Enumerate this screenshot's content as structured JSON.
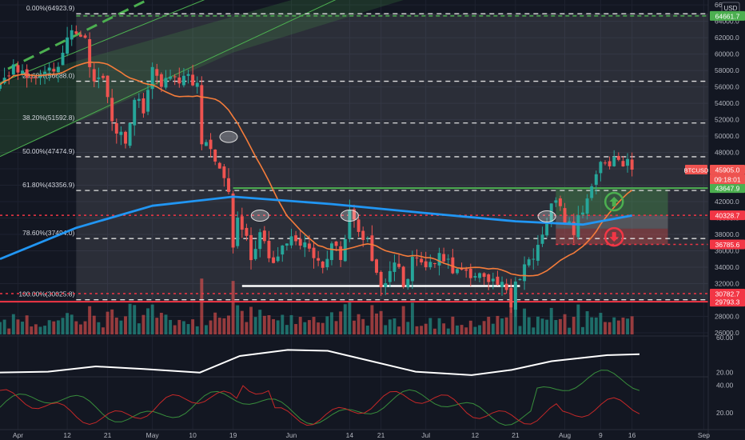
{
  "currency": "USD",
  "colors": {
    "background": "#131722",
    "up": "#26a69a",
    "down": "#ef5350",
    "ma_fast": "#f57c3a",
    "ma_slow": "#2196f3",
    "fib_green": "#4caf50",
    "support_red": "#f23645",
    "text": "#d1d4dc"
  },
  "chart_data": [
    {
      "type": "candlestick",
      "symbol": "BTCUSD",
      "last_price": "45905.0",
      "countdown": "09:18:01",
      "y_ticks": [
        26000,
        28000,
        30000,
        32000,
        34000,
        36000,
        38000,
        40000,
        42000,
        44000,
        46000,
        48000,
        50000,
        52000,
        54000,
        56000,
        58000,
        60000,
        62000,
        64000,
        66000
      ],
      "y_tick_labels": [
        "26000.0",
        "28000.0",
        "30000.0",
        "32000.0",
        "34000.0",
        "36000.0",
        "38000.0",
        "40000.0",
        "42000.0",
        "44000.0",
        "46000.0",
        "48000.0",
        "50000.0",
        "52000.0",
        "54000.0",
        "56000.0",
        "58000.0",
        "60000.0",
        "62000.0",
        "64000.0",
        "66000.0"
      ],
      "ylim": [
        25800,
        66600
      ],
      "x_labels": [
        {
          "label": "Apr",
          "date": "2021-04-01"
        },
        {
          "label": "12",
          "date": "2021-04-12"
        },
        {
          "label": "21",
          "date": "2021-04-21"
        },
        {
          "label": "May",
          "date": "2021-05-01"
        },
        {
          "label": "10",
          "date": "2021-05-10"
        },
        {
          "label": "19",
          "date": "2021-05-19"
        },
        {
          "label": "Jun",
          "date": "2021-06-01"
        },
        {
          "label": "14",
          "date": "2021-06-14"
        },
        {
          "label": "21",
          "date": "2021-06-21"
        },
        {
          "label": "Jul",
          "date": "2021-07-01"
        },
        {
          "label": "12",
          "date": "2021-07-12"
        },
        {
          "label": "21",
          "date": "2021-07-21"
        },
        {
          "label": "Aug",
          "date": "2021-08-01"
        },
        {
          "label": "9",
          "date": "2021-08-09"
        },
        {
          "label": "16",
          "date": "2021-08-16"
        },
        {
          "label": "Sep",
          "date": "2021-09-01"
        }
      ],
      "xlim": [
        "2021-03-28",
        "2021-09-02"
      ],
      "fib_levels": [
        {
          "label": "0.00%(64923.9)",
          "value": 64923.9
        },
        {
          "label": "23.60%(56688.0)",
          "value": 56688.0
        },
        {
          "label": "38.20%(51592.8)",
          "value": 51592.8
        },
        {
          "label": "50.00%(47474.9)",
          "value": 47474.9
        },
        {
          "label": "61.80%(43356.9)",
          "value": 43356.9
        },
        {
          "label": "78.60%(37494.0)",
          "value": 37494.0
        },
        {
          "label": "100.00%(30025.8)",
          "value": 30025.8
        }
      ],
      "price_tags": [
        {
          "label": "64661.7",
          "value": 64661.7,
          "color": "#4caf50"
        },
        {
          "label": "45905.0",
          "value": 45905.0,
          "color": "#ef5350"
        },
        {
          "label": "43647.9",
          "value": 43647.9,
          "color": "#4caf50"
        },
        {
          "label": "40328.7",
          "value": 40328.7,
          "color": "#f23645"
        },
        {
          "label": "36785.6",
          "value": 36785.6,
          "color": "#f23645"
        },
        {
          "label": "30782.7",
          "value": 30782.7,
          "color": "#f23645"
        },
        {
          "label": "29793.3",
          "value": 29793.3,
          "color": "#f23645"
        }
      ],
      "close_series": [
        [
          "2021-03-28",
          55800
        ],
        [
          "2021-03-31",
          58800
        ],
        [
          "2021-04-03",
          57500
        ],
        [
          "2021-04-06",
          58000
        ],
        [
          "2021-04-09",
          58200
        ],
        [
          "2021-04-11",
          60000
        ],
        [
          "2021-04-13",
          63500
        ],
        [
          "2021-04-14",
          63000
        ],
        [
          "2021-04-16",
          61400
        ],
        [
          "2021-04-18",
          56200
        ],
        [
          "2021-04-20",
          56500
        ],
        [
          "2021-04-22",
          51700
        ],
        [
          "2021-04-24",
          50100
        ],
        [
          "2021-04-25",
          49000
        ],
        [
          "2021-04-27",
          55000
        ],
        [
          "2021-04-29",
          53500
        ],
        [
          "2021-05-01",
          57800
        ],
        [
          "2021-05-03",
          56500
        ],
        [
          "2021-05-05",
          57400
        ],
        [
          "2021-05-07",
          57300
        ],
        [
          "2021-05-09",
          58200
        ],
        [
          "2021-05-10",
          55800
        ],
        [
          "2021-05-11",
          56700
        ],
        [
          "2021-05-12",
          49500
        ],
        [
          "2021-05-13",
          49800
        ],
        [
          "2021-05-15",
          46400
        ],
        [
          "2021-05-16",
          46300
        ],
        [
          "2021-05-18",
          42800
        ],
        [
          "2021-05-19",
          36700
        ],
        [
          "2021-05-20",
          40600
        ],
        [
          "2021-05-22",
          37500
        ],
        [
          "2021-05-23",
          34700
        ],
        [
          "2021-05-25",
          38300
        ],
        [
          "2021-05-27",
          35600
        ],
        [
          "2021-05-29",
          34600
        ],
        [
          "2021-05-31",
          37300
        ],
        [
          "2021-06-02",
          37500
        ],
        [
          "2021-06-04",
          36900
        ],
        [
          "2021-06-06",
          35800
        ],
        [
          "2021-06-08",
          33600
        ],
        [
          "2021-06-10",
          36700
        ],
        [
          "2021-06-12",
          35500
        ],
        [
          "2021-06-14",
          40500
        ],
        [
          "2021-06-15",
          40100
        ],
        [
          "2021-06-17",
          38100
        ],
        [
          "2021-06-19",
          35500
        ],
        [
          "2021-06-21",
          31600
        ],
        [
          "2021-06-22",
          32500
        ],
        [
          "2021-06-24",
          34700
        ],
        [
          "2021-06-26",
          32200
        ],
        [
          "2021-06-28",
          34500
        ],
        [
          "2021-06-30",
          35000
        ],
        [
          "2021-07-02",
          33800
        ],
        [
          "2021-07-04",
          35300
        ],
        [
          "2021-07-06",
          34200
        ],
        [
          "2021-07-08",
          32900
        ],
        [
          "2021-07-10",
          33700
        ],
        [
          "2021-07-12",
          33100
        ],
        [
          "2021-07-14",
          32800
        ],
        [
          "2021-07-16",
          31800
        ],
        [
          "2021-07-18",
          31800
        ],
        [
          "2021-07-20",
          29800
        ],
        [
          "2021-07-21",
          32100
        ],
        [
          "2021-07-23",
          33600
        ],
        [
          "2021-07-25",
          35400
        ],
        [
          "2021-07-26",
          37300
        ],
        [
          "2021-07-28",
          40000
        ],
        [
          "2021-07-30",
          42200
        ],
        [
          "2021-08-01",
          39900
        ],
        [
          "2021-08-03",
          38200
        ],
        [
          "2021-08-05",
          40900
        ],
        [
          "2021-08-07",
          44600
        ],
        [
          "2021-08-09",
          46300
        ],
        [
          "2021-08-11",
          45600
        ],
        [
          "2021-08-13",
          47800
        ],
        [
          "2021-08-14",
          47000
        ],
        [
          "2021-08-15",
          47100
        ],
        [
          "2021-08-16",
          45905
        ]
      ]
    },
    {
      "type": "line",
      "panel": "indicator-1",
      "y_ticks": [
        20,
        60
      ],
      "y_tick_labels": [
        "20.00",
        "60.00"
      ],
      "ylim": [
        16,
        62
      ]
    },
    {
      "type": "line",
      "panel": "indicator-2",
      "y_ticks": [
        20,
        40
      ],
      "y_tick_labels": [
        "20.00",
        "40.00"
      ],
      "ylim": [
        8,
        46
      ]
    }
  ]
}
